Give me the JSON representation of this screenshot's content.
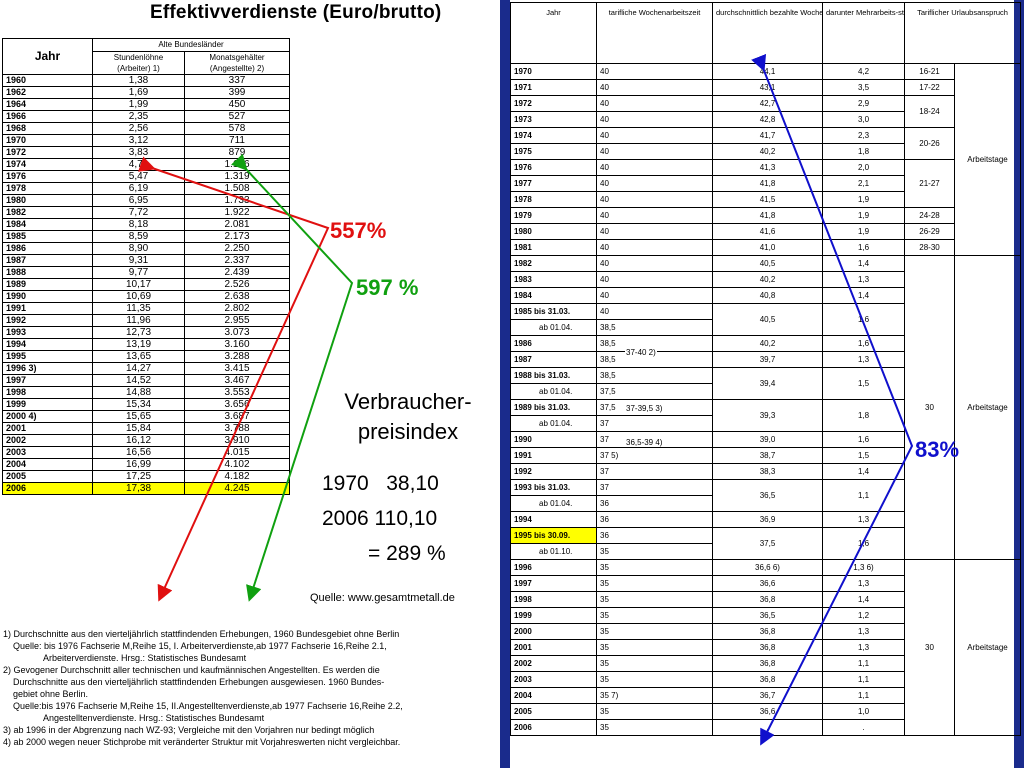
{
  "title": "Effektivverdienste (Euro/brutto)",
  "left_table": {
    "col_jahr": "Jahr",
    "group_header": "Alte Bundesländer",
    "col1": "Stundenlöhne",
    "col1_sub": "(Arbeiter) 1)",
    "col2": "Monatsgehälter",
    "col2_sub": "(Angestellte) 2)",
    "rows": [
      [
        "1960",
        "1,38",
        "337"
      ],
      [
        "1962",
        "1,69",
        "399"
      ],
      [
        "1964",
        "1,99",
        "450"
      ],
      [
        "1966",
        "2,35",
        "527"
      ],
      [
        "1968",
        "2,56",
        "578"
      ],
      [
        "1970",
        "3,12",
        "711"
      ],
      [
        "1972",
        "3,83",
        "879"
      ],
      [
        "1974",
        "4,70",
        "1.126"
      ],
      [
        "1976",
        "5,47",
        "1.319"
      ],
      [
        "1978",
        "6,19",
        "1.508"
      ],
      [
        "1980",
        "6,95",
        "1.733"
      ],
      [
        "1982",
        "7,72",
        "1.922"
      ],
      [
        "1984",
        "8,18",
        "2.081"
      ],
      [
        "1985",
        "8,59",
        "2.173"
      ],
      [
        "1986",
        "8,90",
        "2.250"
      ],
      [
        "1987",
        "9,31",
        "2.337"
      ],
      [
        "1988",
        "9,77",
        "2.439"
      ],
      [
        "1989",
        "10,17",
        "2.526"
      ],
      [
        "1990",
        "10,69",
        "2.638"
      ],
      [
        "1991",
        "11,35",
        "2.802"
      ],
      [
        "1992",
        "11,96",
        "2.955"
      ],
      [
        "1993",
        "12,73",
        "3.073"
      ],
      [
        "1994",
        "13,19",
        "3.160"
      ],
      [
        "1995",
        "13,65",
        "3.288"
      ],
      [
        "1996 3)",
        "14,27",
        "3.415"
      ],
      [
        "1997",
        "14,52",
        "3.467"
      ],
      [
        "1998",
        "14,88",
        "3.553"
      ],
      [
        "1999",
        "15,34",
        "3.656"
      ],
      [
        "2000 4)",
        "15,65",
        "3.687"
      ],
      [
        "2001",
        "15,84",
        "3.788"
      ],
      [
        "2002",
        "16,12",
        "3.910"
      ],
      [
        "2003",
        "16,56",
        "4.015"
      ],
      [
        "2004",
        "16,99",
        "4.102"
      ],
      [
        "2005",
        "17,25",
        "4.182"
      ],
      [
        "2006",
        "17,38",
        "4.245"
      ]
    ],
    "highlight_row": "2006"
  },
  "right_table": {
    "headers": [
      "Jahr",
      "tarifliche Wochenarbeitszeit",
      "durchschnittlich bezahlte Wochen-Std. 1)",
      "darunter Mehrarbeits-stunden 1)",
      "Tariflicher Urlaubsanspruch"
    ],
    "rows": [
      {
        "y": "1970",
        "a": "40",
        "b": "44,1",
        "c": "4,2"
      },
      {
        "y": "1971",
        "a": "40",
        "b": "43,1",
        "c": "3,5"
      },
      {
        "y": "1972",
        "a": "40",
        "b": "42,7",
        "c": "2,9"
      },
      {
        "y": "1973",
        "a": "40",
        "b": "42,8",
        "c": "3,0"
      },
      {
        "y": "1974",
        "a": "40",
        "b": "41,7",
        "c": "2,3"
      },
      {
        "y": "1975",
        "a": "40",
        "b": "40,2",
        "c": "1,8"
      },
      {
        "y": "1976",
        "a": "40",
        "b": "41,3",
        "c": "2,0"
      },
      {
        "y": "1977",
        "a": "40",
        "b": "41,8",
        "c": "2,1"
      },
      {
        "y": "1978",
        "a": "40",
        "b": "41,5",
        "c": "1,9"
      },
      {
        "y": "1979",
        "a": "40",
        "b": "41,8",
        "c": "1,9"
      },
      {
        "y": "1980",
        "a": "40",
        "b": "41,6",
        "c": "1,9"
      },
      {
        "y": "1981",
        "a": "40",
        "b": "41,0",
        "c": "1,6"
      },
      {
        "y": "1982",
        "a": "40",
        "b": "40,5",
        "c": "1,4"
      },
      {
        "y": "1983",
        "a": "40",
        "b": "40,2",
        "c": "1,3"
      },
      {
        "y": "1984",
        "a": "40",
        "b": "40,8",
        "c": "1,4"
      },
      {
        "y": "1985 bis 31.03.",
        "a": "40",
        "b": "40,5",
        "c": "1,6"
      },
      {
        "y": "ab 01.04.",
        "a": "38,5",
        "b": "",
        "c": ""
      },
      {
        "y": "1986",
        "a": "38,5",
        "b": "40,2",
        "c": "1,6"
      },
      {
        "y": "1987",
        "a": "38,5",
        "b": "39,7",
        "c": "1,3"
      },
      {
        "y": "1988 bis 31.03.",
        "a": "38,5",
        "b": "39,4",
        "c": "1,5"
      },
      {
        "y": "ab 01.04.",
        "a": "37,5",
        "b": "",
        "c": ""
      },
      {
        "y": "1989 bis 31.03.",
        "a": "37,5",
        "b": "39,3",
        "c": "1,8"
      },
      {
        "y": "ab 01.04.",
        "a": "37",
        "b": "",
        "c": ""
      },
      {
        "y": "1990",
        "a": "37",
        "b": "39,0",
        "c": "1,6"
      },
      {
        "y": "1991",
        "a": "37 5)",
        "b": "38,7",
        "c": "1,5"
      },
      {
        "y": "1992",
        "a": "37",
        "b": "38,3",
        "c": "1,4"
      },
      {
        "y": "1993 bis 31.03.",
        "a": "37",
        "b": "36,5",
        "c": "1,1"
      },
      {
        "y": "ab 01.04.",
        "a": "36",
        "b": "",
        "c": ""
      },
      {
        "y": "1994",
        "a": "36",
        "b": "36,9",
        "c": "1,3"
      },
      {
        "y": "1995 bis 30.09.",
        "a": "36",
        "b": "37,5",
        "c": "1,6"
      },
      {
        "y": "ab 01.10.",
        "a": "35",
        "b": "",
        "c": ""
      },
      {
        "y": "1996",
        "a": "35",
        "b": "36,6 6)",
        "c": "1,3 6)"
      },
      {
        "y": "1997",
        "a": "35",
        "b": "36,6",
        "c": "1,3"
      },
      {
        "y": "1998",
        "a": "35",
        "b": "36,8",
        "c": "1,4"
      },
      {
        "y": "1999",
        "a": "35",
        "b": "36,5",
        "c": "1,2"
      },
      {
        "y": "2000",
        "a": "35",
        "b": "36,8",
        "c": "1,3"
      },
      {
        "y": "2001",
        "a": "35",
        "b": "36,8",
        "c": "1,3"
      },
      {
        "y": "2002",
        "a": "35",
        "b": "36,8",
        "c": "1,1"
      },
      {
        "y": "2003",
        "a": "35",
        "b": "36,8",
        "c": "1,1"
      },
      {
        "y": "2004",
        "a": "35 7)",
        "b": "36,7",
        "c": "1,1"
      },
      {
        "y": "2005",
        "a": "35",
        "b": "36,6",
        "c": "1,0"
      },
      {
        "y": "2006",
        "a": "35",
        "b": ".",
        "c": "."
      }
    ],
    "urlaub": [
      "16-21",
      "17-22",
      "18-24",
      "20-26",
      "21-27",
      "24-28",
      "26-29",
      "28-30",
      "30",
      "30"
    ],
    "arbeitstage": "Arbeitstage",
    "wochenarbeit_ranges": [
      "37-40 2)",
      "37-39,5 3)",
      "36,5-39 4)"
    ]
  },
  "annotations": {
    "pct_hourly": "557%",
    "pct_monthly": "597 %",
    "pct_hours": "83%",
    "vpi_label": "Verbraucher-preisindex",
    "vpi_1970": "1970   38,10",
    "vpi_2006": "2006 110,10",
    "vpi_result": "= 289 %",
    "source": "Quelle: www.gesamtmetall.de",
    "colors": {
      "red": "#e01010",
      "green": "#10a010",
      "blue": "#1010cc",
      "highlight": "#ffff00"
    }
  },
  "footnotes": [
    "1) Durchschnitte aus den vierteljährlich stattfindenden Erhebungen, 1960 Bundesgebiet ohne Berlin",
    "Quelle: bis 1976 Fachserie M,Reihe 15, I. Arbeiterverdienste,ab 1977 Fachserie 16,Reihe 2.1,",
    "Arbeiterverdienste.  Hrsg.: Statistisches Bundesamt",
    "2) Gevogener Durchschnitt aller technischen und kaufmännischen Angestellten. Es werden die",
    "Durchschnitte aus den vierteljährlich stattfindenden Erhebungen ausgewiesen. 1960 Bundes-",
    "gebiet ohne Berlin.",
    "Quelle:bis 1976 Fachserie M,Reihe 15, II.Angestelltenverdienste,ab 1977 Fachserie 16,Reihe 2.2,",
    "Angestelltenverdienste.  Hrsg.: Statistisches Bundesamt",
    "3) ab 1996 in der Abgrenzung nach WZ-93; Vergleiche mit den Vorjahren nur bedingt möglich",
    "4) ab 2000 wegen neuer Stichprobe mit veränderter Struktur mit Vorjahreswerten nicht vergleichbar."
  ]
}
